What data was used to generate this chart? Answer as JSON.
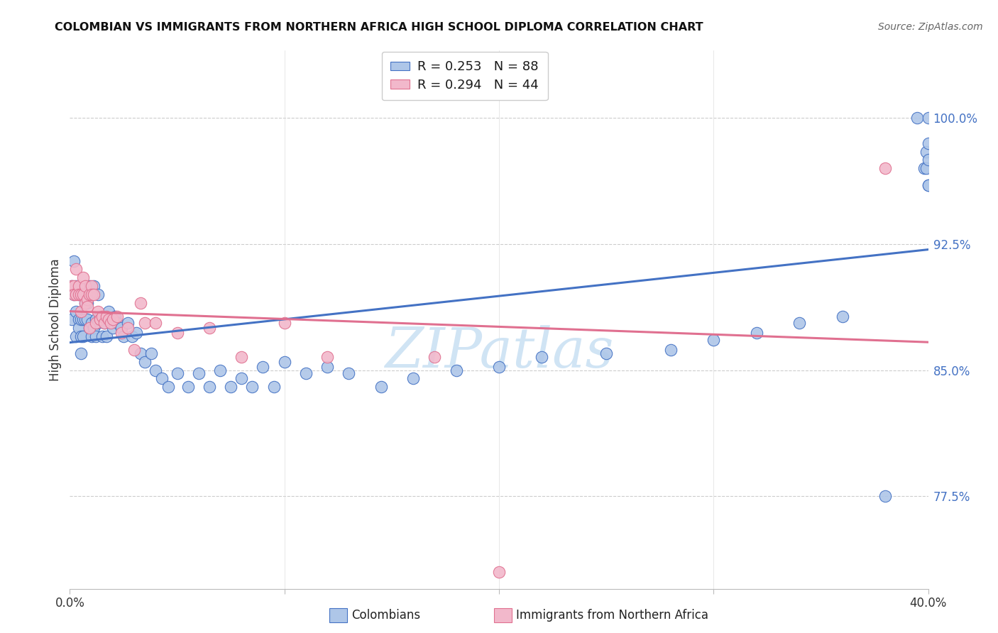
{
  "title": "COLOMBIAN VS IMMIGRANTS FROM NORTHERN AFRICA HIGH SCHOOL DIPLOMA CORRELATION CHART",
  "source": "Source: ZipAtlas.com",
  "ylabel": "High School Diploma",
  "ytick_labels": [
    "77.5%",
    "85.0%",
    "92.5%",
    "100.0%"
  ],
  "ytick_vals": [
    0.775,
    0.85,
    0.925,
    1.0
  ],
  "legend_label_blue": "Colombians",
  "legend_label_pink": "Immigrants from Northern Africa",
  "blue_color": "#aec6e8",
  "pink_color": "#f2b8cb",
  "line_blue": "#4472c4",
  "line_pink": "#e07090",
  "watermark_color": "#d0e4f4",
  "blue_x": [
    0.001,
    0.001,
    0.002,
    0.002,
    0.003,
    0.003,
    0.003,
    0.004,
    0.004,
    0.004,
    0.005,
    0.005,
    0.005,
    0.005,
    0.006,
    0.006,
    0.006,
    0.007,
    0.007,
    0.008,
    0.008,
    0.009,
    0.009,
    0.01,
    0.01,
    0.01,
    0.011,
    0.011,
    0.012,
    0.012,
    0.013,
    0.013,
    0.014,
    0.015,
    0.015,
    0.016,
    0.017,
    0.018,
    0.019,
    0.02,
    0.021,
    0.022,
    0.024,
    0.025,
    0.027,
    0.029,
    0.031,
    0.033,
    0.035,
    0.038,
    0.04,
    0.043,
    0.046,
    0.05,
    0.055,
    0.06,
    0.065,
    0.07,
    0.075,
    0.08,
    0.085,
    0.09,
    0.095,
    0.1,
    0.11,
    0.12,
    0.13,
    0.145,
    0.16,
    0.18,
    0.2,
    0.22,
    0.25,
    0.28,
    0.3,
    0.32,
    0.34,
    0.36,
    0.38,
    0.395,
    0.398,
    0.399,
    0.399,
    0.4,
    0.4,
    0.4,
    0.4,
    0.4
  ],
  "blue_y": [
    0.9,
    0.88,
    0.915,
    0.895,
    0.9,
    0.885,
    0.87,
    0.895,
    0.88,
    0.875,
    0.895,
    0.88,
    0.87,
    0.86,
    0.895,
    0.88,
    0.87,
    0.89,
    0.88,
    0.89,
    0.88,
    0.9,
    0.875,
    0.895,
    0.878,
    0.87,
    0.9,
    0.875,
    0.88,
    0.87,
    0.895,
    0.878,
    0.882,
    0.87,
    0.882,
    0.878,
    0.87,
    0.885,
    0.878,
    0.875,
    0.882,
    0.878,
    0.875,
    0.87,
    0.878,
    0.87,
    0.872,
    0.86,
    0.855,
    0.86,
    0.85,
    0.845,
    0.84,
    0.848,
    0.84,
    0.848,
    0.84,
    0.85,
    0.84,
    0.845,
    0.84,
    0.852,
    0.84,
    0.855,
    0.848,
    0.852,
    0.848,
    0.84,
    0.845,
    0.85,
    0.852,
    0.858,
    0.86,
    0.862,
    0.868,
    0.872,
    0.878,
    0.882,
    0.775,
    1.0,
    0.97,
    0.97,
    0.98,
    0.96,
    0.96,
    0.975,
    0.985,
    1.0
  ],
  "pink_x": [
    0.001,
    0.002,
    0.002,
    0.003,
    0.003,
    0.004,
    0.004,
    0.005,
    0.005,
    0.006,
    0.006,
    0.007,
    0.007,
    0.008,
    0.008,
    0.009,
    0.009,
    0.01,
    0.01,
    0.011,
    0.012,
    0.013,
    0.014,
    0.015,
    0.016,
    0.017,
    0.018,
    0.019,
    0.02,
    0.022,
    0.024,
    0.027,
    0.03,
    0.033,
    0.035,
    0.04,
    0.05,
    0.065,
    0.08,
    0.1,
    0.12,
    0.17,
    0.2,
    0.38
  ],
  "pink_y": [
    0.9,
    0.9,
    0.895,
    0.91,
    0.895,
    0.9,
    0.895,
    0.895,
    0.885,
    0.905,
    0.895,
    0.9,
    0.89,
    0.892,
    0.888,
    0.895,
    0.875,
    0.9,
    0.895,
    0.895,
    0.878,
    0.885,
    0.88,
    0.882,
    0.878,
    0.882,
    0.88,
    0.878,
    0.88,
    0.882,
    0.872,
    0.875,
    0.862,
    0.89,
    0.878,
    0.878,
    0.872,
    0.875,
    0.858,
    0.878,
    0.858,
    0.858,
    0.73,
    0.97
  ],
  "xlim": [
    0.0,
    0.4
  ],
  "ylim": [
    0.72,
    1.04
  ],
  "xtick_positions": [
    0.0,
    0.1,
    0.2,
    0.3,
    0.4
  ],
  "xtick_labels": [
    "0.0%",
    "",
    "",
    "",
    "40.0%"
  ],
  "background_color": "#ffffff"
}
